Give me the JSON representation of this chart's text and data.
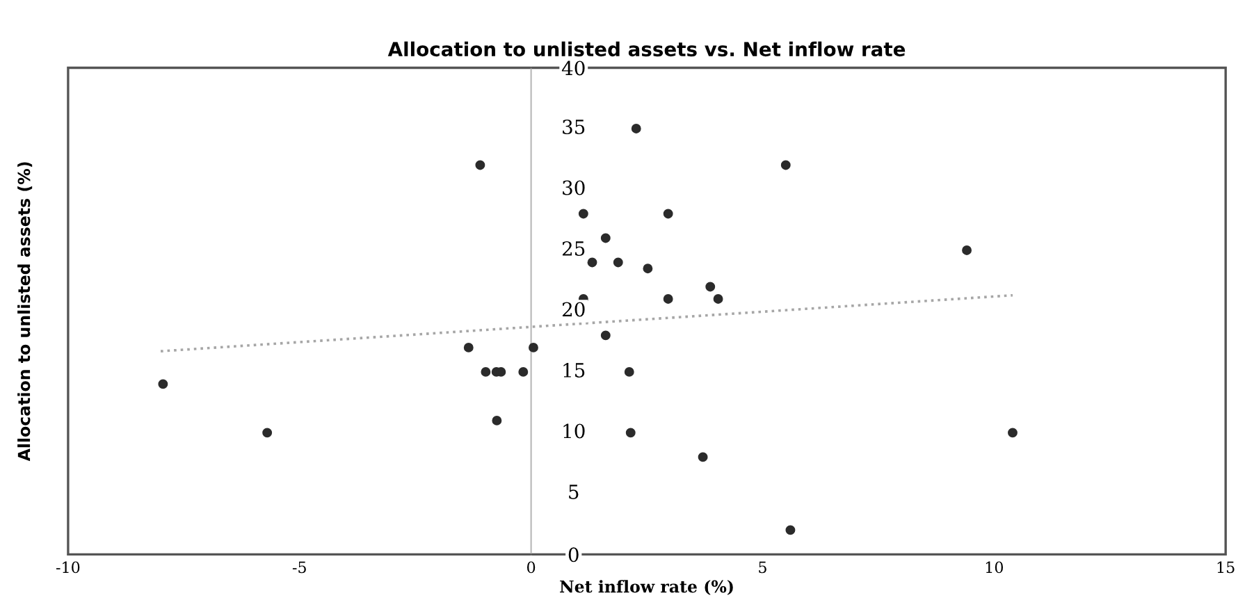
{
  "chart_data": {
    "type": "scatter",
    "title": "Allocation to unlisted assets vs. Net inflow rate",
    "xlabel": "Net inflow rate (%)",
    "ylabel": "Allocation to unlisted assets (%)",
    "xlim": [
      -10,
      15
    ],
    "xticks": [
      -10,
      -5,
      0,
      5,
      10,
      15
    ],
    "ylim": [
      0,
      40
    ],
    "yticks": [
      0,
      5,
      10,
      15,
      20,
      25,
      30,
      35,
      40
    ],
    "grid": false,
    "legend": false,
    "series": [
      {
        "marker": "circle",
        "color": "#2b2b2b",
        "x": [
          -7.95,
          -5.7,
          -1.35,
          -1.1,
          -0.98,
          -0.74,
          -0.75,
          -0.65,
          -0.17,
          0.05,
          1.13,
          1.13,
          1.32,
          1.61,
          1.61,
          1.88,
          2.12,
          2.15,
          2.27,
          2.52,
          2.96,
          2.96,
          3.71,
          3.87,
          4.04,
          5.5,
          5.6,
          9.41,
          10.4
        ],
        "values": [
          14,
          10,
          17,
          32,
          15,
          11,
          15,
          15,
          15,
          17,
          28,
          21,
          24,
          26,
          18,
          24,
          15,
          10,
          35,
          23.5,
          28,
          21,
          8,
          22,
          21,
          32,
          2,
          25,
          10
        ]
      },
      {
        "type": "line",
        "color": "#a6a6a6",
        "line_style": "dotted",
        "x": [
          -8,
          10.4
        ],
        "values": [
          16.7,
          21.3
        ]
      }
    ]
  }
}
